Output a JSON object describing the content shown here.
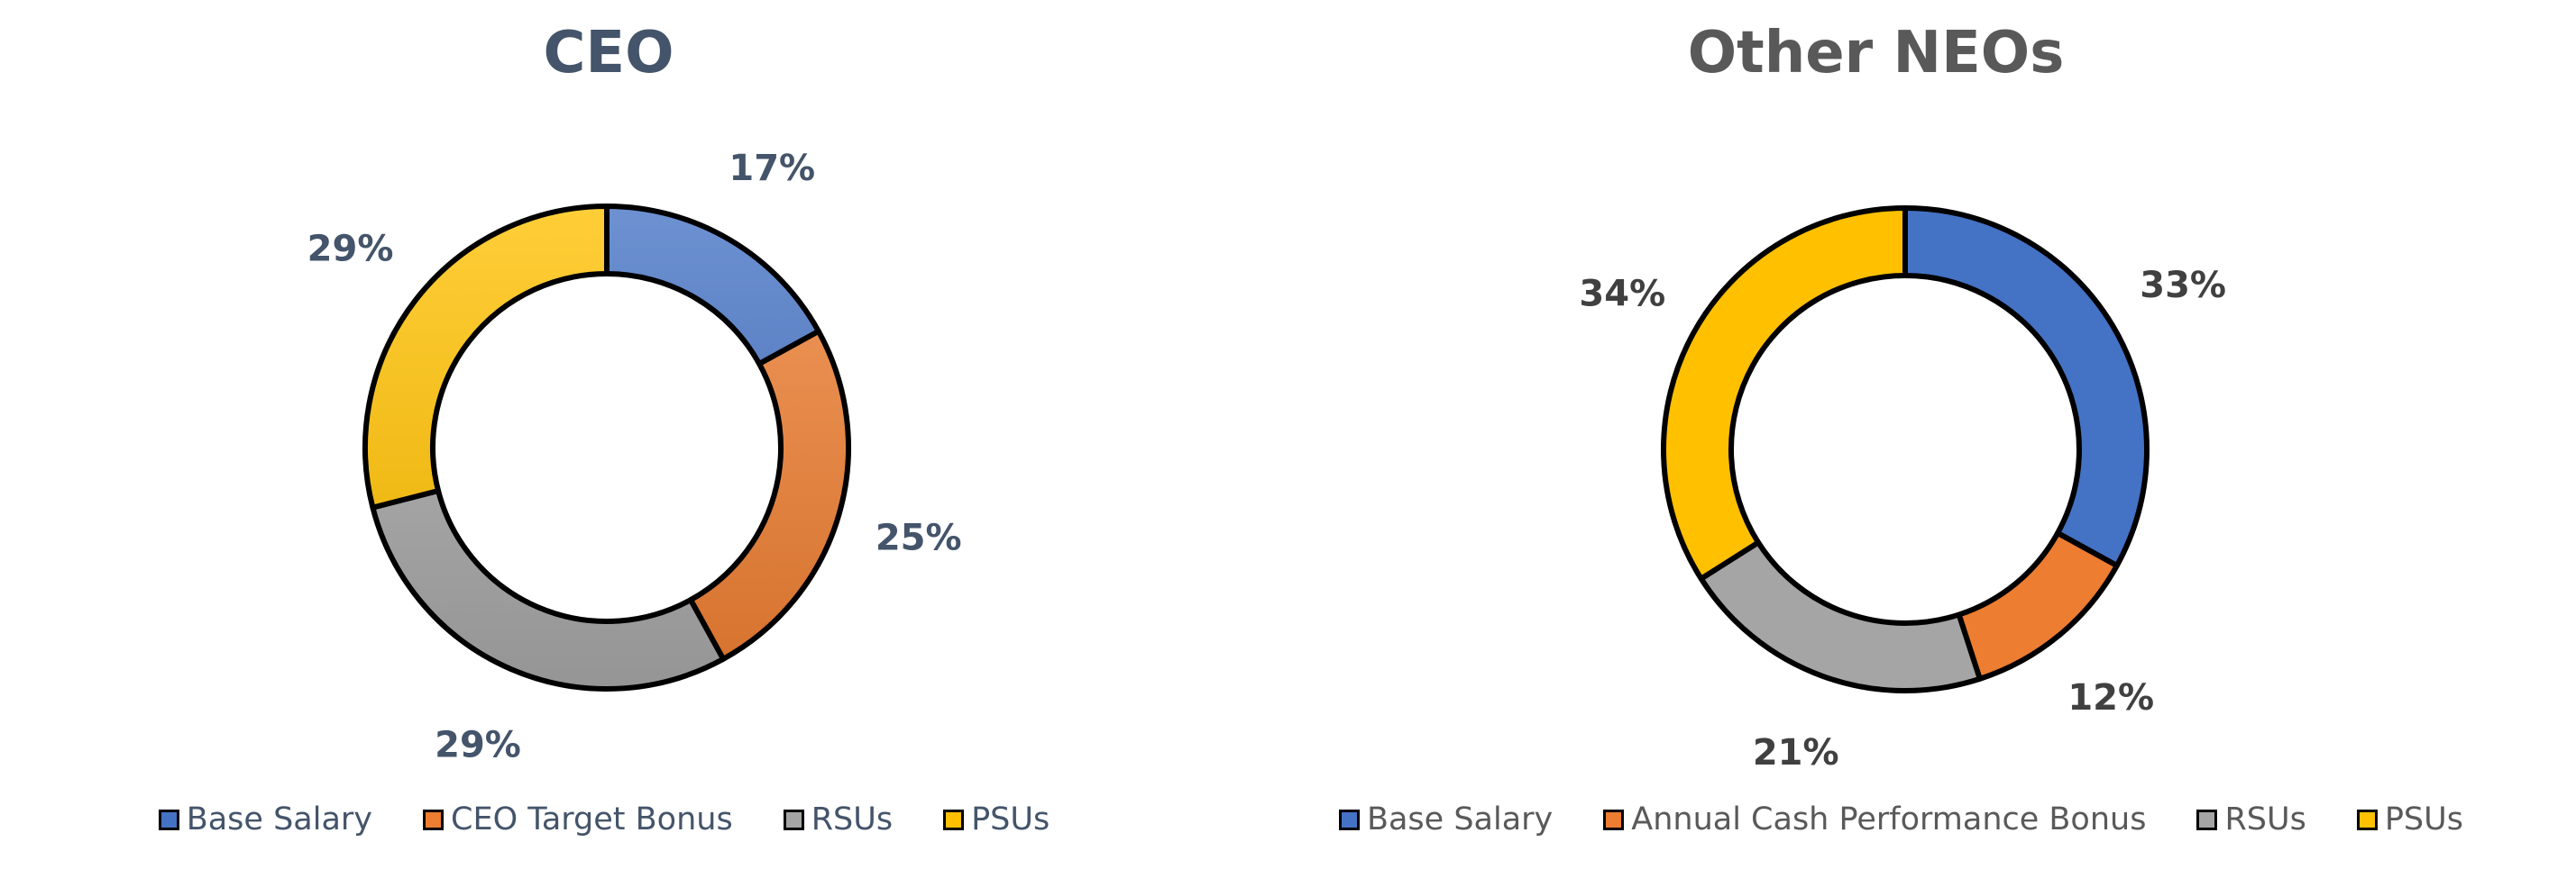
{
  "chart_data": [
    {
      "type": "donut",
      "title": "CEO",
      "categories": [
        "Base Salary",
        "CEO Target Bonus",
        "RSUs",
        "PSUs"
      ],
      "values": [
        17,
        25,
        29,
        29
      ],
      "value_labels": [
        "17%",
        "25%",
        "29%",
        "29%"
      ],
      "colors": [
        "#4472c4",
        "#ed7d31",
        "#a5a5a5",
        "#ffc000"
      ],
      "label_color": "#44546a",
      "legend": "bottom"
    },
    {
      "type": "donut",
      "title": "Other NEOs",
      "categories": [
        "Base Salary",
        "Annual Cash Performance Bonus",
        "RSUs",
        "PSUs"
      ],
      "values": [
        33,
        12,
        21,
        34
      ],
      "value_labels": [
        "33%",
        "12%",
        "21%",
        "34%"
      ],
      "colors": [
        "#4472c4",
        "#ed7d31",
        "#a5a5a5",
        "#ffc000"
      ],
      "label_color": "#404040",
      "legend": "bottom"
    }
  ]
}
